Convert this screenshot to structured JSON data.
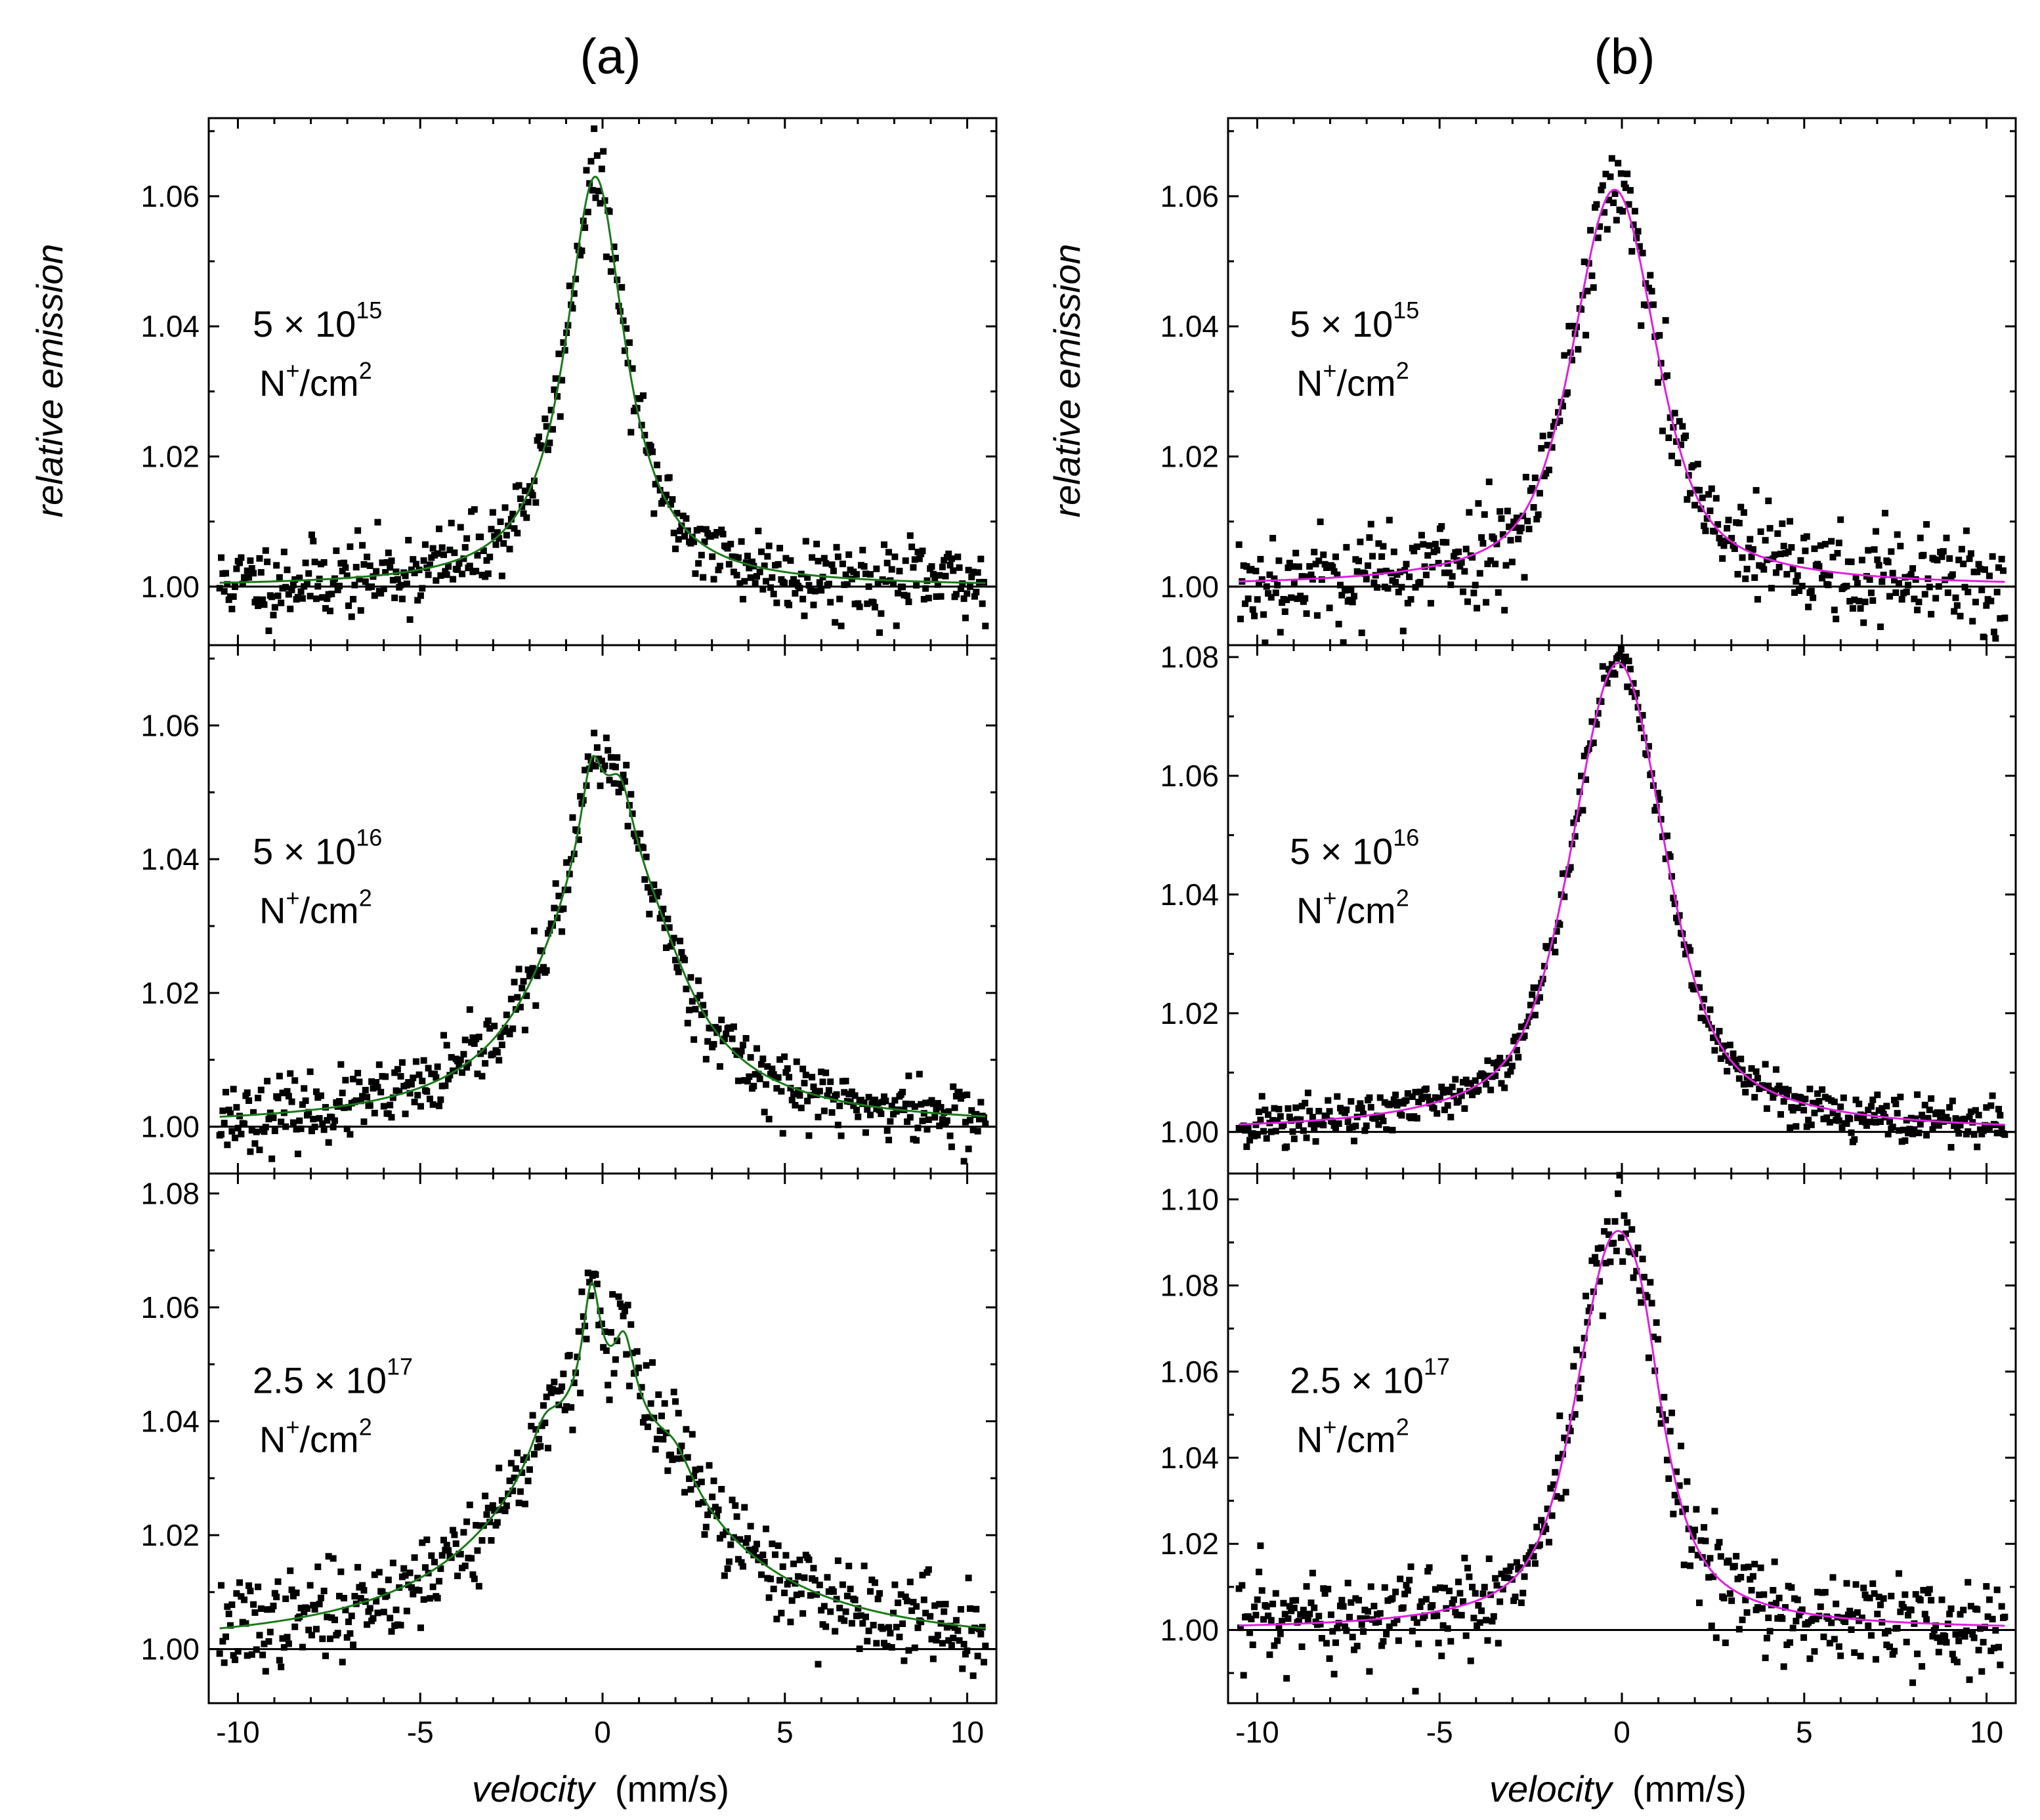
{
  "chart_data": {
    "type": "scatter",
    "columns": [
      {
        "title": "(a)",
        "fit_color": "#1a7a1a",
        "panels": [
          {
            "id": "a1",
            "annotation": {
              "dose": "5 × 10",
              "dose_exp": "15",
              "unit_base": "N",
              "unit_sup": "+",
              "unit_rest": "/cm",
              "unit_exp": "2"
            },
            "ylim": [
              0.991,
              1.072
            ],
            "yticks": [
              1.0,
              1.02,
              1.04,
              1.06
            ],
            "ytick_labels": [
              "1.00",
              "1.02",
              "1.04",
              "1.06"
            ],
            "baseline": 1.0,
            "peaks": [
              {
                "center": -0.2,
                "amp": 0.063,
                "width": 1.0,
                "type": "lorentz"
              }
            ],
            "noise": 0.003,
            "seed": 11
          },
          {
            "id": "a2",
            "annotation": {
              "dose": "5 × 10",
              "dose_exp": "16",
              "unit_base": "N",
              "unit_sup": "+",
              "unit_rest": "/cm",
              "unit_exp": "2"
            },
            "ylim": [
              0.993,
              1.072
            ],
            "yticks": [
              1.0,
              1.02,
              1.04,
              1.06
            ],
            "ytick_labels": [
              "1.00",
              "1.02",
              "1.04",
              "1.06"
            ],
            "baseline": 1.0,
            "peaks": [
              {
                "center": 0.0,
                "amp": 0.04,
                "width": 2.0,
                "type": "lorentz"
              },
              {
                "center": -0.3,
                "amp": 0.012,
                "width": 0.35,
                "type": "lorentz"
              },
              {
                "center": 0.5,
                "amp": 0.009,
                "width": 0.45,
                "type": "lorentz"
              },
              {
                "center": 1.5,
                "amp": 0.006,
                "width": 1.2,
                "type": "lorentz"
              }
            ],
            "noise": 0.0025,
            "seed": 23
          },
          {
            "id": "a3",
            "annotation": {
              "dose": "2.5 × 10",
              "dose_exp": "17",
              "unit_base": "N",
              "unit_sup": "+",
              "unit_rest": "/cm",
              "unit_exp": "2"
            },
            "ylim": [
              0.9905,
              1.0835
            ],
            "yticks": [
              1.0,
              1.02,
              1.04,
              1.06,
              1.08
            ],
            "ytick_labels": [
              "1.00",
              "1.02",
              "1.04",
              "1.06",
              "1.08"
            ],
            "baseline": 1.0,
            "peaks": [
              {
                "center": 0.0,
                "amp": 0.042,
                "width": 3.2,
                "type": "lorentz"
              },
              {
                "center": -0.3,
                "amp": 0.02,
                "width": 0.3,
                "type": "lorentz"
              },
              {
                "center": 0.6,
                "amp": 0.012,
                "width": 0.35,
                "type": "lorentz"
              },
              {
                "center": -1.6,
                "amp": 0.006,
                "width": 0.5,
                "type": "lorentz"
              },
              {
                "center": 2.0,
                "amp": 0.005,
                "width": 0.6,
                "type": "lorentz"
              }
            ],
            "noise": 0.004,
            "seed": 37
          }
        ]
      },
      {
        "title": "(b)",
        "fit_color": "#e020e0",
        "panels": [
          {
            "id": "b1",
            "annotation": {
              "dose": "5 × 10",
              "dose_exp": "15",
              "unit_base": "N",
              "unit_sup": "+",
              "unit_rest": "/cm",
              "unit_exp": "2"
            },
            "ylim": [
              0.991,
              1.072
            ],
            "yticks": [
              1.0,
              1.02,
              1.04,
              1.06
            ],
            "ytick_labels": [
              "1.00",
              "1.02",
              "1.04",
              "1.06"
            ],
            "baseline": 1.0,
            "peaks": [
              {
                "center": -0.2,
                "amp": 0.061,
                "width": 1.6,
                "type": "pseudo"
              }
            ],
            "noise": 0.004,
            "seed": 53
          },
          {
            "id": "b2",
            "annotation": {
              "dose": "5 × 10",
              "dose_exp": "16",
              "unit_base": "N",
              "unit_sup": "+",
              "unit_rest": "/cm",
              "unit_exp": "2"
            },
            "ylim": [
              0.993,
              1.082
            ],
            "yticks": [
              1.0,
              1.02,
              1.04,
              1.06,
              1.08
            ],
            "ytick_labels": [
              "1.00",
              "1.02",
              "1.04",
              "1.06",
              "1.08"
            ],
            "baseline": 1.0,
            "peaks": [
              {
                "center": -0.1,
                "amp": 0.079,
                "width": 1.8,
                "type": "pseudo"
              }
            ],
            "noise": 0.002,
            "seed": 71
          },
          {
            "id": "b3",
            "annotation": {
              "dose": "2.5 × 10",
              "dose_exp": "17",
              "unit_base": "N",
              "unit_sup": "+",
              "unit_rest": "/cm",
              "unit_exp": "2"
            },
            "ylim": [
              0.983,
              1.106
            ],
            "yticks": [
              1.0,
              1.02,
              1.04,
              1.06,
              1.08,
              1.1
            ],
            "ytick_labels": [
              "1.00",
              "1.02",
              "1.04",
              "1.06",
              "1.08",
              "1.10"
            ],
            "baseline": 1.0,
            "peaks": [
              {
                "center": -0.2,
                "amp": 0.088,
                "width": 1.5,
                "type": "pseudo"
              },
              {
                "center": 0.6,
                "amp": 0.012,
                "width": 0.6,
                "type": "lorentz"
              }
            ],
            "noise": 0.006,
            "seed": 97
          }
        ]
      }
    ],
    "xlim": [
      -10.8,
      10.8
    ],
    "xticks": [
      -10,
      -5,
      0,
      5,
      10
    ],
    "xtick_labels": [
      "-10",
      "-5",
      "0",
      "5",
      "10"
    ],
    "x_minor_step": 1,
    "x_range_data": [
      -10.5,
      10.5
    ],
    "n_points": 500,
    "ylabel": "relative emission",
    "xlabel_italic": "velocity",
    "xlabel_unit": "(mm/s)"
  }
}
